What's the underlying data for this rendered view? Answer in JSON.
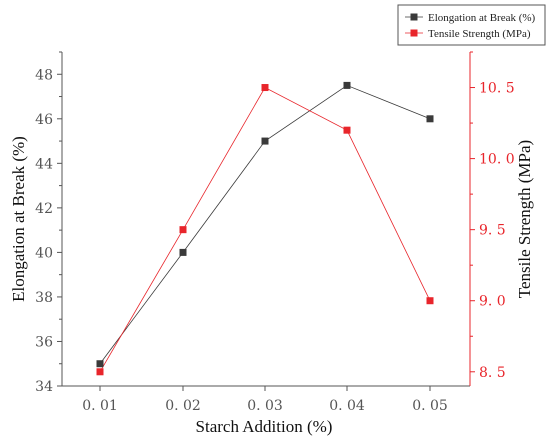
{
  "colors": {
    "elongation": "#3a3a3a",
    "tensile": "#e8252b",
    "axis_left": "#555555",
    "axis_right": "#e8252b"
  },
  "chart_data": {
    "type": "line",
    "x": [
      0.01,
      0.02,
      0.03,
      0.04,
      0.05
    ],
    "x_tick_labels": [
      "0. 01",
      "0. 02",
      "0. 03",
      "0. 04",
      "0. 05"
    ],
    "xlabel": "Starch Addition (%)",
    "ylabel_left": "Elongation at Break (%)",
    "ylabel_right": "Tensile Strength (MPa)",
    "ylim_left": [
      34,
      49
    ],
    "ylim_right": [
      8.4,
      10.75
    ],
    "yticks_left": [
      "34",
      "36",
      "38",
      "40",
      "42",
      "44",
      "46",
      "48"
    ],
    "yticks_right": [
      "8. 5",
      "9. 0",
      "9. 5",
      "10. 0",
      "10. 5"
    ],
    "yticks_right_values": [
      8.5,
      9.0,
      9.5,
      10.0,
      10.5
    ],
    "yticks_left_values": [
      34,
      36,
      38,
      40,
      42,
      44,
      46,
      48
    ],
    "grid": false,
    "legend_position": "top-right",
    "series": [
      {
        "name": "Elongation at Break (%)",
        "axis": "left",
        "marker": "square",
        "values": [
          35.0,
          40.0,
          45.0,
          47.5,
          46.0
        ]
      },
      {
        "name": "Tensile Strength (MPa)",
        "axis": "right",
        "marker": "square",
        "values": [
          8.5,
          9.5,
          10.5,
          10.2,
          9.0
        ]
      }
    ]
  }
}
